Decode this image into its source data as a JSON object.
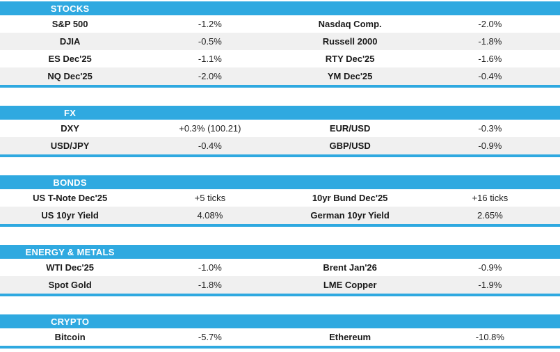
{
  "colors": {
    "accent_blue": "#2FA9E0",
    "alt_row_gray": "#F0F0F0",
    "header_text": "#FFFFFF"
  },
  "table": {
    "sections": [
      {
        "title": "STOCKS",
        "rows": [
          {
            "cells": [
              "S&P 500",
              "-1.2%",
              "Nasdaq Comp.",
              "-2.0%"
            ]
          },
          {
            "cells": [
              "DJIA",
              "-0.5%",
              "Russell 2000",
              "-1.8%"
            ]
          },
          {
            "cells": [
              "ES Dec'25",
              "-1.1%",
              "RTY Dec'25",
              "-1.6%"
            ]
          },
          {
            "cells": [
              "NQ Dec'25",
              "-2.0%",
              "YM Dec'25",
              "-0.4%"
            ]
          }
        ]
      },
      {
        "title": "FX",
        "rows": [
          {
            "cells": [
              "DXY",
              "+0.3% (100.21)",
              "EUR/USD",
              "-0.3%"
            ]
          },
          {
            "cells": [
              "USD/JPY",
              "-0.4%",
              "GBP/USD",
              "-0.9%"
            ]
          }
        ]
      },
      {
        "title": "BONDS",
        "rows": [
          {
            "cells": [
              "US T-Note Dec'25",
              "+5 ticks",
              "10yr Bund Dec'25",
              "+16 ticks"
            ]
          },
          {
            "cells": [
              "US 10yr Yield",
              "4.08%",
              "German 10yr Yield",
              "2.65%"
            ]
          }
        ]
      },
      {
        "title": "ENERGY & METALS",
        "rows": [
          {
            "cells": [
              "WTI Dec'25",
              "-1.0%",
              "Brent Jan'26",
              "-0.9%"
            ]
          },
          {
            "cells": [
              "Spot Gold",
              "-1.8%",
              "LME Copper",
              "-1.9%"
            ]
          }
        ]
      },
      {
        "title": "CRYPTO",
        "rows": [
          {
            "cells": [
              "Bitcoin",
              "-5.7%",
              "Ethereum",
              "-10.8%"
            ]
          }
        ]
      }
    ]
  }
}
